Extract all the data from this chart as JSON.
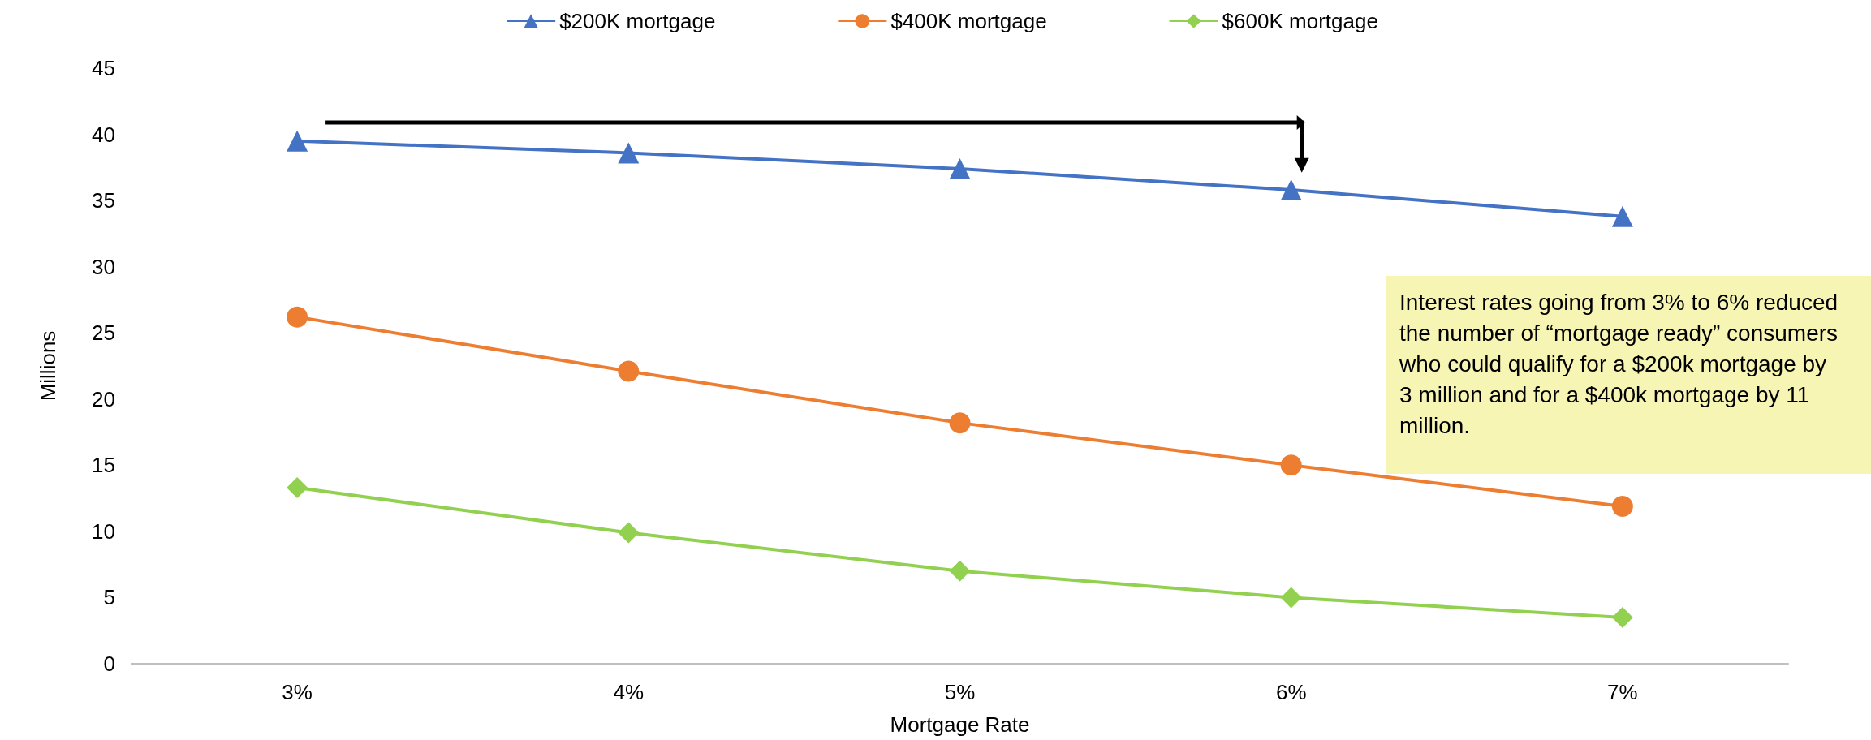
{
  "chart_data": {
    "type": "line",
    "xlabel": "Mortgage Rate",
    "ylabel": "Millions",
    "categories": [
      "3%",
      "4%",
      "5%",
      "6%",
      "7%"
    ],
    "series": [
      {
        "name": "$200K mortgage",
        "color": "#4472c4",
        "marker": "triangle",
        "values": [
          39.5,
          38.6,
          37.4,
          35.8,
          33.8
        ]
      },
      {
        "name": "$400K mortgage",
        "color": "#ed7d31",
        "marker": "circle",
        "values": [
          26.2,
          22.1,
          18.2,
          15.0,
          11.9
        ]
      },
      {
        "name": "$600K mortgage",
        "color": "#92d050",
        "marker": "diamond",
        "values": [
          13.3,
          9.9,
          7.0,
          5.0,
          3.5
        ]
      }
    ],
    "ylim": [
      0,
      45
    ],
    "yticks": [
      0,
      5,
      10,
      15,
      20,
      25,
      30,
      35,
      40,
      45
    ],
    "grid": false,
    "legend": "top",
    "annotations": [
      "Interest rates going from 3% to 6% reduced the number of “mortgage ready” consumers who could qualify for a $200k mortgage by 3 million and for a $400k mortgage by 11 million."
    ]
  }
}
